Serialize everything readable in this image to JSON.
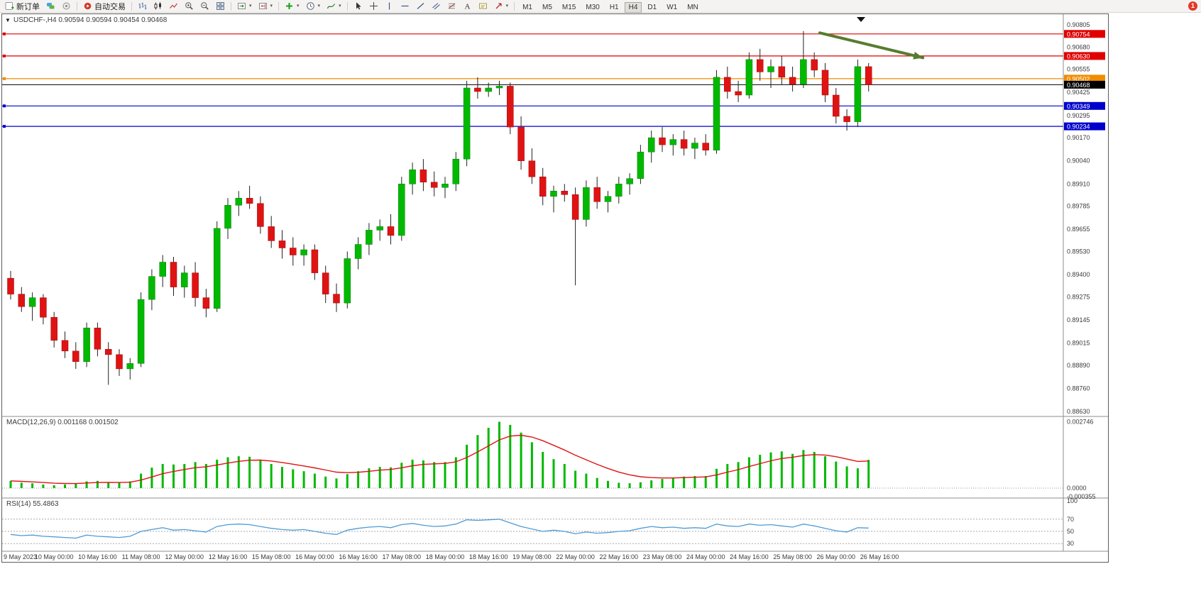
{
  "toolbar": {
    "new_order_label": "新订单",
    "auto_trading_label": "自动交易",
    "timeframes": [
      "M1",
      "M5",
      "M15",
      "M30",
      "H1",
      "H4",
      "D1",
      "W1",
      "MN"
    ],
    "active_timeframe": "H4",
    "notification_count": "1"
  },
  "chart": {
    "title": "USDCHF-,H4 0.90594 0.90594 0.90454 0.90468",
    "symbol": "USDCHF-",
    "period": "H4",
    "open": "0.90594",
    "high": "0.90594",
    "low": "0.90454",
    "close": "0.90468"
  },
  "chart_data": {
    "type": "candlestick",
    "symbol": "USDCHF-",
    "timeframe": "H4",
    "colors": {
      "bull": "#00b900",
      "bear": "#e01313",
      "wick": "#222222",
      "hline_red": "#e00000",
      "hline_orange": "#f08c00",
      "hline_blue": "#0000cd",
      "current": "#000000"
    },
    "y_ticks": [
      "0.90805",
      "0.90680",
      "0.90555",
      "0.90425",
      "0.90295",
      "0.90170",
      "0.90040",
      "0.89910",
      "0.89785",
      "0.89655",
      "0.89530",
      "0.89400",
      "0.89275",
      "0.89145",
      "0.89015",
      "0.88890",
      "0.88760",
      "0.88630"
    ],
    "x_labels": [
      "9 May 2023",
      "10 May 00:00",
      "10 May 16:00",
      "11 May 08:00",
      "12 May 00:00",
      "12 May 16:00",
      "15 May 08:00",
      "16 May 00:00",
      "16 May 16:00",
      "17 May 08:00",
      "18 May 00:00",
      "18 May 16:00",
      "19 May 08:00",
      "22 May 00:00",
      "22 May 16:00",
      "23 May 08:00",
      "24 May 00:00",
      "24 May 16:00",
      "25 May 08:00",
      "26 May 00:00",
      "26 May 16:00"
    ],
    "hlines": [
      {
        "price": 0.90754,
        "color": "#e00000",
        "label": "0.90754"
      },
      {
        "price": 0.9063,
        "color": "#e00000",
        "label": "0.90630"
      },
      {
        "price": 0.90502,
        "color": "#f08c00",
        "label": "0.90502"
      },
      {
        "price": 0.90349,
        "color": "#0000cd",
        "label": "0.90349"
      },
      {
        "price": 0.90234,
        "color": "#0000cd",
        "label": "0.90234"
      }
    ],
    "current_price": {
      "value": 0.90468,
      "label": "0.90468"
    },
    "arrow": {
      "from": {
        "index": 74.5,
        "price": 0.9076
      },
      "to": {
        "index": 84,
        "price": 0.9062
      },
      "color": "#567d2e"
    },
    "candles": [
      [
        0.8938,
        0.8942,
        0.8926,
        0.8929
      ],
      [
        0.8929,
        0.8933,
        0.8919,
        0.8922
      ],
      [
        0.8922,
        0.893,
        0.8914,
        0.8927
      ],
      [
        0.8927,
        0.8929,
        0.8912,
        0.8916
      ],
      [
        0.8916,
        0.8919,
        0.8899,
        0.8903
      ],
      [
        0.8903,
        0.8908,
        0.8893,
        0.8897
      ],
      [
        0.8897,
        0.8902,
        0.8887,
        0.8891
      ],
      [
        0.8891,
        0.8913,
        0.8888,
        0.891
      ],
      [
        0.891,
        0.8913,
        0.8894,
        0.8898
      ],
      [
        0.8898,
        0.8902,
        0.8878,
        0.8895
      ],
      [
        0.8895,
        0.8898,
        0.8883,
        0.8887
      ],
      [
        0.8887,
        0.8893,
        0.8881,
        0.889
      ],
      [
        0.889,
        0.893,
        0.8888,
        0.8926
      ],
      [
        0.8926,
        0.8943,
        0.892,
        0.8939
      ],
      [
        0.8939,
        0.8951,
        0.8933,
        0.8947
      ],
      [
        0.8947,
        0.895,
        0.8928,
        0.8933
      ],
      [
        0.8933,
        0.8945,
        0.8927,
        0.8941
      ],
      [
        0.8941,
        0.8947,
        0.8922,
        0.8927
      ],
      [
        0.8927,
        0.8932,
        0.8916,
        0.8921
      ],
      [
        0.8921,
        0.897,
        0.8919,
        0.8966
      ],
      [
        0.8966,
        0.8983,
        0.896,
        0.8979
      ],
      [
        0.8979,
        0.8987,
        0.8973,
        0.8983
      ],
      [
        0.8983,
        0.899,
        0.8977,
        0.898
      ],
      [
        0.898,
        0.8984,
        0.8963,
        0.8967
      ],
      [
        0.8967,
        0.8973,
        0.8955,
        0.8959
      ],
      [
        0.8959,
        0.8965,
        0.8949,
        0.8955
      ],
      [
        0.8955,
        0.8961,
        0.8945,
        0.8951
      ],
      [
        0.8951,
        0.8957,
        0.8945,
        0.8954
      ],
      [
        0.8954,
        0.8957,
        0.8937,
        0.8941
      ],
      [
        0.8941,
        0.8945,
        0.8924,
        0.8929
      ],
      [
        0.8929,
        0.8935,
        0.8919,
        0.8924
      ],
      [
        0.8924,
        0.8953,
        0.8921,
        0.8949
      ],
      [
        0.8949,
        0.8961,
        0.8943,
        0.8957
      ],
      [
        0.8957,
        0.8969,
        0.8951,
        0.8965
      ],
      [
        0.8965,
        0.8971,
        0.8959,
        0.8967
      ],
      [
        0.8967,
        0.8974,
        0.8957,
        0.8962
      ],
      [
        0.8962,
        0.8995,
        0.8959,
        0.8991
      ],
      [
        0.8991,
        0.9003,
        0.8985,
        0.8999
      ],
      [
        0.8999,
        0.9005,
        0.8987,
        0.8992
      ],
      [
        0.8992,
        0.8998,
        0.8984,
        0.8989
      ],
      [
        0.8989,
        0.8995,
        0.8983,
        0.8991
      ],
      [
        0.8991,
        0.9009,
        0.8987,
        0.9005
      ],
      [
        0.9005,
        0.9049,
        0.9001,
        0.9045
      ],
      [
        0.9045,
        0.9051,
        0.9039,
        0.9043
      ],
      [
        0.9043,
        0.9048,
        0.904,
        0.9045
      ],
      [
        0.9045,
        0.9049,
        0.9041,
        0.9046
      ],
      [
        0.9046,
        0.9048,
        0.9019,
        0.9023
      ],
      [
        0.9023,
        0.9029,
        0.8999,
        0.9004
      ],
      [
        0.9004,
        0.9011,
        0.8991,
        0.8995
      ],
      [
        0.8995,
        0.9,
        0.8979,
        0.8984
      ],
      [
        0.8984,
        0.899,
        0.8975,
        0.8987
      ],
      [
        0.8987,
        0.8991,
        0.8981,
        0.8985
      ],
      [
        0.8985,
        0.8989,
        0.8934,
        0.8971
      ],
      [
        0.8971,
        0.8993,
        0.8967,
        0.8989
      ],
      [
        0.8989,
        0.8995,
        0.8977,
        0.8981
      ],
      [
        0.8981,
        0.8987,
        0.8975,
        0.8984
      ],
      [
        0.8984,
        0.8995,
        0.898,
        0.8991
      ],
      [
        0.8991,
        0.8997,
        0.8985,
        0.8994
      ],
      [
        0.8994,
        0.9013,
        0.8991,
        0.9009
      ],
      [
        0.9009,
        0.9021,
        0.9003,
        0.9017
      ],
      [
        0.9017,
        0.9023,
        0.9009,
        0.9013
      ],
      [
        0.9013,
        0.9019,
        0.9007,
        0.9016
      ],
      [
        0.9016,
        0.9021,
        0.9007,
        0.9011
      ],
      [
        0.9011,
        0.9017,
        0.9005,
        0.9014
      ],
      [
        0.9014,
        0.9019,
        0.9007,
        0.901
      ],
      [
        0.901,
        0.9055,
        0.9008,
        0.9051
      ],
      [
        0.9051,
        0.9057,
        0.9039,
        0.9043
      ],
      [
        0.9043,
        0.9049,
        0.9037,
        0.9041
      ],
      [
        0.9041,
        0.9065,
        0.9039,
        0.9061
      ],
      [
        0.9061,
        0.9067,
        0.9049,
        0.9054
      ],
      [
        0.9054,
        0.9061,
        0.9045,
        0.9057
      ],
      [
        0.9057,
        0.9063,
        0.9047,
        0.9051
      ],
      [
        0.9051,
        0.9057,
        0.9043,
        0.9047
      ],
      [
        0.9047,
        0.9077,
        0.9045,
        0.9061
      ],
      [
        0.9061,
        0.9065,
        0.9051,
        0.9055
      ],
      [
        0.9055,
        0.9059,
        0.9037,
        0.9041
      ],
      [
        0.9041,
        0.9045,
        0.9025,
        0.9029
      ],
      [
        0.9029,
        0.9033,
        0.9021,
        0.9026
      ],
      [
        0.9026,
        0.9061,
        0.9023,
        0.9057
      ],
      [
        0.9057,
        0.9059,
        0.9043,
        0.90468
      ]
    ],
    "macd": {
      "display": "MACD(12,26,9) 0.001168 0.001502",
      "histogram_color": "#00b900",
      "signal_color": "#e01313",
      "axis": [
        "0.002746",
        "0.0000",
        "-0.000355"
      ],
      "histogram": [
        0.0003,
        0.00022,
        0.0002,
        0.00015,
        0.00012,
        0.00015,
        0.00018,
        0.00028,
        0.0003,
        0.00024,
        0.00022,
        0.00028,
        0.0006,
        0.00085,
        0.001,
        0.00098,
        0.001,
        0.00108,
        0.001,
        0.00118,
        0.00128,
        0.00132,
        0.0013,
        0.00118,
        0.001,
        0.00088,
        0.00078,
        0.0007,
        0.0006,
        0.00048,
        0.0004,
        0.00058,
        0.0007,
        0.00082,
        0.00088,
        0.00086,
        0.00105,
        0.00118,
        0.00115,
        0.00108,
        0.00108,
        0.00128,
        0.0018,
        0.0022,
        0.0025,
        0.00275,
        0.00262,
        0.0023,
        0.0019,
        0.0015,
        0.0012,
        0.001,
        0.00072,
        0.0006,
        0.00042,
        0.0003,
        0.00022,
        0.0002,
        0.00024,
        0.00032,
        0.00038,
        0.00042,
        0.00048,
        0.0005,
        0.0005,
        0.0008,
        0.001,
        0.00108,
        0.00128,
        0.00138,
        0.00148,
        0.00152,
        0.00142,
        0.00158,
        0.0015,
        0.00132,
        0.0011,
        0.0009,
        0.00082,
        0.00117
      ]
    },
    "rsi": {
      "display": "RSI(14) 55.4863",
      "line_color": "#4f9bd6",
      "axis": [
        "100",
        "70",
        "50",
        "30"
      ],
      "levels": [
        70,
        50,
        30
      ],
      "values": [
        45,
        43,
        44,
        42,
        41,
        40,
        39,
        44,
        42,
        41,
        40,
        42,
        50,
        53,
        56,
        52,
        53,
        51,
        49,
        58,
        61,
        62,
        61,
        58,
        55,
        53,
        52,
        53,
        50,
        47,
        45,
        52,
        55,
        57,
        58,
        56,
        61,
        63,
        60,
        58,
        59,
        62,
        69,
        68,
        69,
        70,
        64,
        58,
        54,
        50,
        52,
        50,
        46,
        49,
        47,
        48,
        50,
        51,
        55,
        58,
        56,
        57,
        55,
        56,
        55,
        62,
        59,
        58,
        62,
        60,
        61,
        59,
        57,
        62,
        59,
        55,
        51,
        49,
        56,
        55.49
      ]
    }
  }
}
